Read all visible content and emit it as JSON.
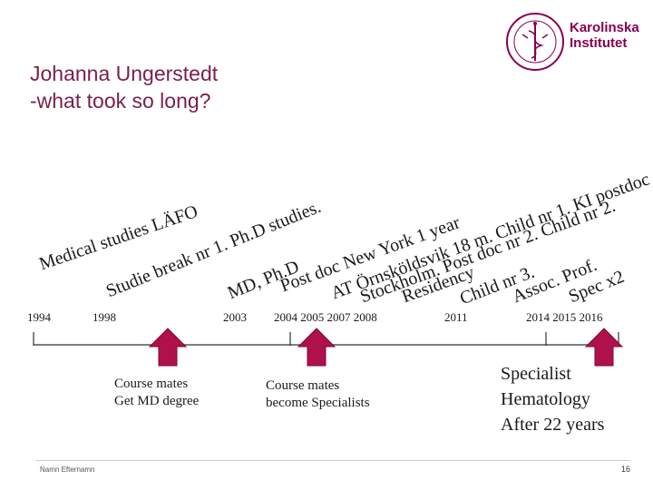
{
  "title": {
    "line1": "Johanna Ungerstedt",
    "line2": "-what took so long?"
  },
  "logo": {
    "line1": "Karolinska",
    "line2": "Institutet",
    "seal_text": "KAROLINSKA INSTITUTET ANNO 1810"
  },
  "labels": [
    "Medical studies LÄFO",
    "Studie break nr 1. Ph.D studies.",
    "MD, Ph.D",
    "Post doc New York 1 year",
    "AT Örnsköldsvik 18 m. Child nr 1. KI postdoc",
    "Stockholm. Post doc nr 2. Child nr 2.",
    "Residency",
    "Child nr 3.",
    "Assoc. Prof.",
    "Spec x2"
  ],
  "years": {
    "y1994": "1994",
    "y1998": "1998",
    "y2003": "2003",
    "group_2004_2008": "2004 2005  2007  2008",
    "y2011": "2011",
    "group_2014_2016": "2014  2015  2016"
  },
  "notes": {
    "md_degree": {
      "line1": "Course mates",
      "line2": "Get MD degree"
    },
    "specialists": {
      "line1": "Course mates",
      "line2": "become Specialists"
    },
    "specialist": {
      "line1": "Specialist",
      "line2": "Hematology",
      "line3": "After 22 years"
    }
  },
  "footer": {
    "name": "Namn Efternamn",
    "page": "16"
  },
  "colors": {
    "accent": "#870052",
    "title": "#7a1e4e",
    "arrow": "#b0114b"
  }
}
